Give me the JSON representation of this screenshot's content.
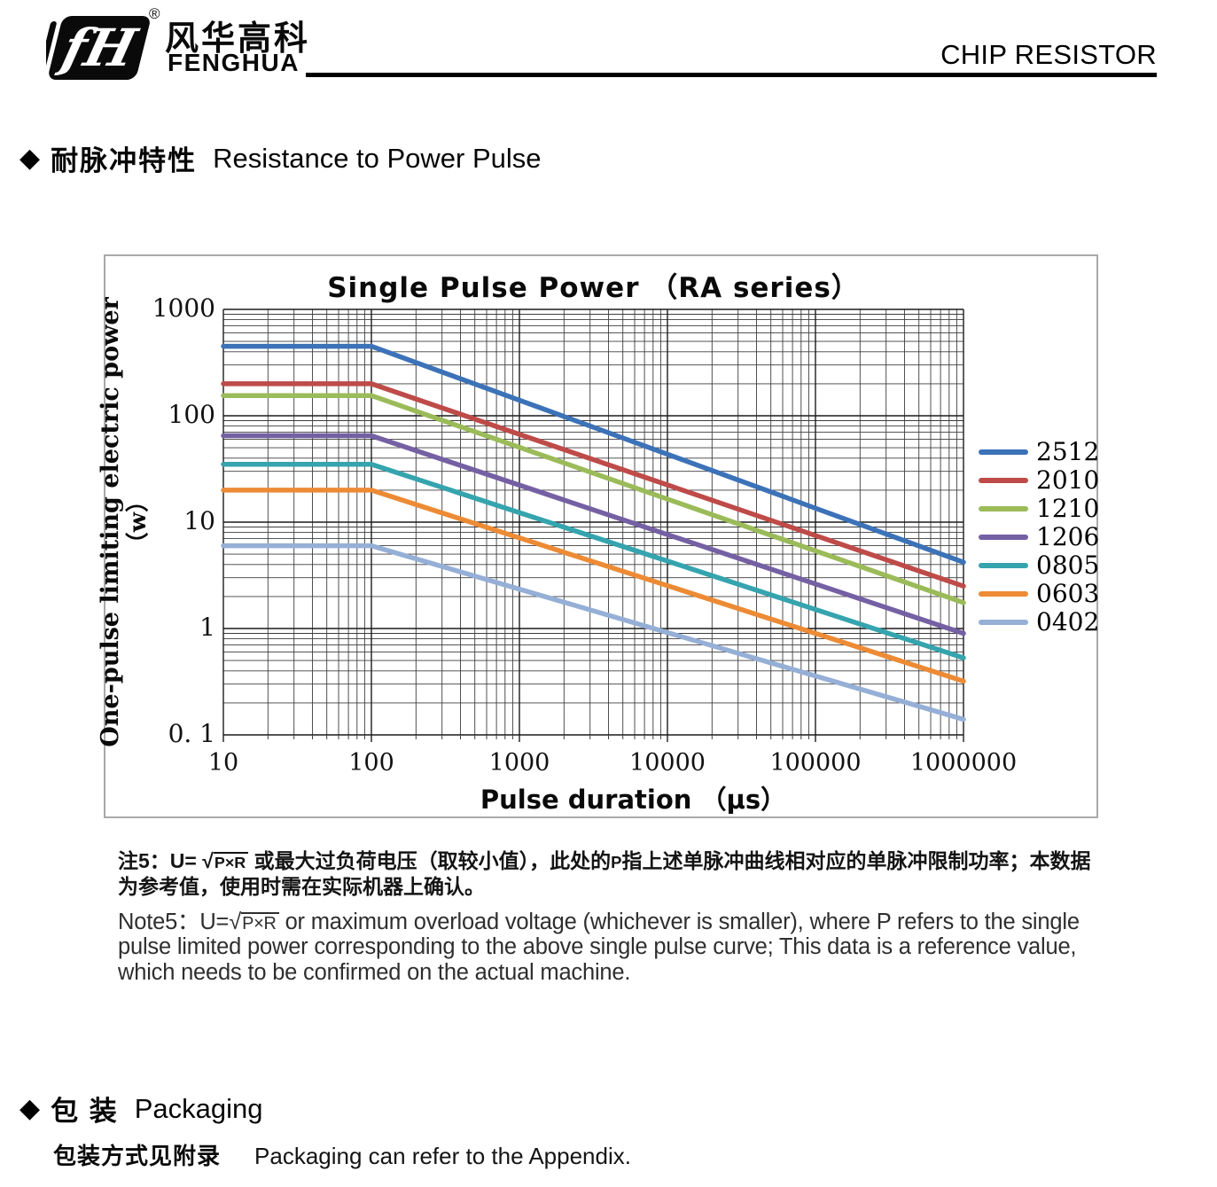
{
  "header": {
    "brand_cn": "风华高科",
    "brand_en": "FENGHUA",
    "logo_monogram": "fH",
    "registered_mark": "®",
    "doc_title": "CHIP RESISTOR"
  },
  "section_pulse": {
    "bullet": "◆",
    "title_cn": "耐脉冲特性",
    "title_en": "Resistance to Power Pulse"
  },
  "chart_data": {
    "type": "line",
    "title": "Single Pulse Power （RA series）",
    "xlabel": "Pulse duration （μs）",
    "ylabel": "One-pulse limiting electric power",
    "ylabel_unit": "（w）",
    "x_scale": "log",
    "y_scale": "log",
    "xlim": [
      10,
      1000000
    ],
    "ylim": [
      0.1,
      1000
    ],
    "x_ticks": [
      "10",
      "100",
      "1000",
      "10000",
      "100000",
      "1000000"
    ],
    "y_ticks": [
      "1000",
      "100",
      "10",
      "1",
      "0. 1"
    ],
    "grid": "log-log major and minor gridlines, dark gray",
    "legend_position": "right",
    "series": [
      {
        "name": "2512",
        "color": "#3C72B8",
        "points": [
          [
            10,
            450
          ],
          [
            100,
            450
          ],
          [
            1000000,
            4.2
          ]
        ]
      },
      {
        "name": "2010",
        "color": "#BE4B48",
        "points": [
          [
            10,
            200
          ],
          [
            100,
            200
          ],
          [
            1000000,
            2.5
          ]
        ]
      },
      {
        "name": "1210",
        "color": "#9BBB59",
        "points": [
          [
            10,
            155
          ],
          [
            100,
            155
          ],
          [
            1000000,
            1.75
          ]
        ]
      },
      {
        "name": "1206",
        "color": "#7460A3",
        "points": [
          [
            10,
            65
          ],
          [
            100,
            65
          ],
          [
            1000000,
            0.9
          ]
        ]
      },
      {
        "name": "0805",
        "color": "#35A4AE",
        "points": [
          [
            10,
            35
          ],
          [
            100,
            35
          ],
          [
            1000000,
            0.53
          ]
        ]
      },
      {
        "name": "0603",
        "color": "#ED8B35",
        "points": [
          [
            10,
            20
          ],
          [
            100,
            20
          ],
          [
            1000000,
            0.32
          ]
        ]
      },
      {
        "name": "0402",
        "color": "#95AFD6",
        "points": [
          [
            10,
            6
          ],
          [
            100,
            6
          ],
          [
            1000000,
            0.14
          ]
        ]
      }
    ]
  },
  "notes": {
    "sqrt_sign": "√",
    "cn_prefix": "注5：U= ",
    "cn_radicand": "P×R",
    "cn_body1": "  或最大过负荷电压（取较小值），此处的",
    "cn_p": "P",
    "cn_body2": "指上述单脉冲曲线相对应的单脉冲限制功率；本数据为参考值，使用时需在实际机器上确认。",
    "en_prefix": "Note5：U=",
    "en_radicand": "P×R",
    "en_body": " or maximum overload voltage (whichever is smaller), where P refers to the single pulse limited power corresponding to the above single pulse curve; This data is a reference value, which needs to be confirmed on the actual machine."
  },
  "section_packaging": {
    "bullet": "◆",
    "title_cn": "包 装",
    "title_en": "Packaging",
    "body_cn": "包装方式见附录",
    "body_en": "Packaging can refer to the Appendix."
  }
}
